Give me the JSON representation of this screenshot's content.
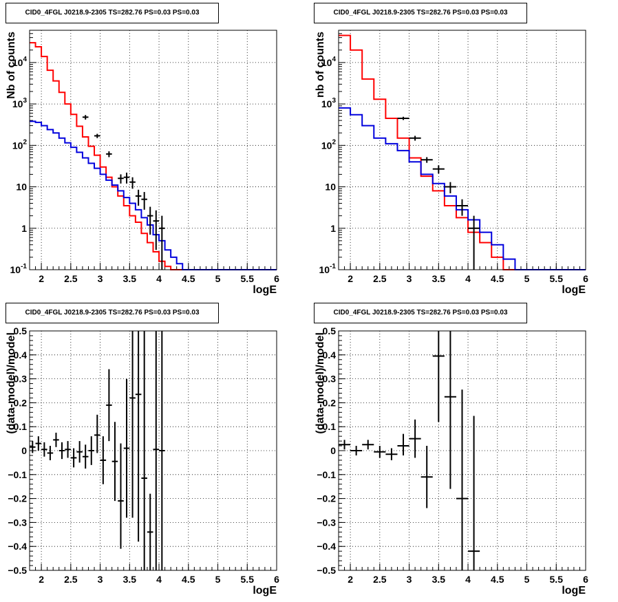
{
  "panels": [
    {
      "title": "CID0_4FGL J0218.9-2305 TS=282.76 PS=0.03 PS=0.03",
      "ylabel": "Nb of counts",
      "xlabel": "logE"
    },
    {
      "title": "CID0_4FGL J0218.9-2305 TS=282.76 PS=0.03 PS=0.03",
      "ylabel": "nb of counts",
      "xlabel": "logE"
    },
    {
      "title": "CID0_4FGL J0218.9-2305 TS=282.76 PS=0.03 PS=0.03",
      "ylabel": "(data-model)/model",
      "xlabel": "logE"
    },
    {
      "title": "CID0_4FGL J0218.9-2305 TS=282.76 PS=0.03 PS=0.03",
      "ylabel": "(data-model)/model",
      "xlabel": "logE"
    }
  ],
  "chart_data": [
    {
      "type": "line",
      "title": "CID0_4FGL J0218.9-2305 TS=282.76 PS=0.03 PS=0.03",
      "xlabel": "logE",
      "ylabel": "Nb of counts",
      "xlim": [
        1.8,
        6
      ],
      "ylim": [
        0.1,
        60000
      ],
      "yscale": "log",
      "grid": true,
      "xticks": [
        "2",
        "2.5",
        "3",
        "3.5",
        "4",
        "4.5",
        "5",
        "5.5",
        "6"
      ],
      "yticks": [
        "10^-1",
        "1",
        "10",
        "10^2",
        "10^3",
        "10^4"
      ],
      "step_x_edges": [
        1.8,
        1.9,
        2.0,
        2.1,
        2.2,
        2.3,
        2.4,
        2.5,
        2.6,
        2.7,
        2.8,
        2.9,
        3.0,
        3.1,
        3.2,
        3.3,
        3.4,
        3.5,
        3.6,
        3.7,
        3.8,
        3.9,
        4.0,
        4.1,
        4.2,
        4.3,
        4.4,
        4.5,
        4.6,
        4.7,
        4.8,
        4.9,
        5.0,
        5.1,
        5.2,
        5.3,
        5.4,
        5.5,
        5.6,
        5.7,
        5.8,
        5.9,
        6.0
      ],
      "series": [
        {
          "color": "#ff0000",
          "values": [
            30000,
            24000,
            14000,
            6500,
            3600,
            1900,
            1000,
            560,
            290,
            160,
            95,
            58,
            30,
            17,
            10,
            6,
            3.5,
            2.0,
            1.4,
            0.75,
            0.45,
            0.27,
            0.16,
            0.12,
            0.1,
            0.1,
            0.1,
            0.1,
            0.1,
            0.1,
            0.1,
            0.1,
            0.1,
            0.1,
            0.1,
            0.1,
            0.1,
            0.1,
            0.1,
            0.1,
            0.1,
            0.1
          ]
        },
        {
          "color": "#0000dd",
          "values": [
            380,
            360,
            300,
            240,
            200,
            150,
            115,
            90,
            68,
            50,
            37,
            28,
            20,
            14.5,
            11,
            8,
            5.5,
            4.0,
            2.8,
            1.8,
            1.2,
            0.7,
            0.5,
            0.3,
            0.2,
            0.14,
            0.1,
            0.1,
            0.1,
            0.1,
            0.1,
            0.1,
            0.1,
            0.1,
            0.1,
            0.1,
            0.1,
            0.1,
            0.1,
            0.1,
            0.1,
            0.1
          ]
        }
      ],
      "data_points": {
        "color": "#000000",
        "x": [
          2.75,
          2.95,
          3.15,
          3.35,
          3.45,
          3.55,
          3.65,
          3.75,
          3.85,
          3.95,
          4.05
        ],
        "y": [
          480,
          170,
          62,
          16,
          17,
          13,
          6,
          5,
          2.0,
          1.5,
          1.0
        ],
        "ylow": [
          420,
          150,
          52,
          12,
          12,
          9,
          3.5,
          2.8,
          0.7,
          0.3,
          0.1
        ],
        "yhigh": [
          540,
          190,
          72,
          20,
          22,
          17,
          8.5,
          7.5,
          3.3,
          2.7,
          2.0
        ],
        "xhalf": 0.05
      }
    },
    {
      "type": "line",
      "title": "CID0_4FGL J0218.9-2305 TS=282.76 PS=0.03 PS=0.03",
      "xlabel": "logE",
      "ylabel": "nb of counts",
      "xlim": [
        1.8,
        6
      ],
      "ylim": [
        0.1,
        60000
      ],
      "yscale": "log",
      "grid": true,
      "xticks": [
        "2",
        "2.5",
        "3",
        "3.5",
        "4",
        "4.5",
        "5",
        "5.5",
        "6"
      ],
      "yticks": [
        "10^-1",
        "1",
        "10",
        "10^2",
        "10^3",
        "10^4"
      ],
      "step_x_edges": [
        1.8,
        2.0,
        2.2,
        2.4,
        2.6,
        2.8,
        3.0,
        3.2,
        3.4,
        3.6,
        3.8,
        4.0,
        4.2,
        4.4,
        4.6,
        4.8,
        5.0,
        5.2,
        5.4,
        5.6,
        5.8,
        6.0
      ],
      "series": [
        {
          "color": "#ff0000",
          "values": [
            45000,
            20000,
            4000,
            1300,
            450,
            150,
            50,
            18,
            8,
            3.5,
            1.8,
            0.8,
            0.45,
            0.2,
            0.1,
            0.1,
            0.1,
            0.1,
            0.1,
            0.1,
            0.1
          ]
        },
        {
          "color": "#0000dd",
          "values": [
            800,
            550,
            300,
            150,
            110,
            75,
            40,
            20,
            12,
            6,
            2.8,
            1.6,
            0.8,
            0.4,
            0.18,
            0.1,
            0.1,
            0.1,
            0.1,
            0.1,
            0.1
          ]
        }
      ],
      "data_points": {
        "color": "#000000",
        "x": [
          2.9,
          3.1,
          3.3,
          3.5,
          3.7,
          3.9,
          4.1
        ],
        "y": [
          450,
          150,
          45,
          27,
          10,
          3.5,
          1.0
        ],
        "ylow": [
          410,
          130,
          38,
          21,
          7,
          2.0,
          0.1
        ],
        "yhigh": [
          490,
          170,
          52,
          33,
          13,
          5.0,
          2.0
        ],
        "xhalf": 0.1
      }
    },
    {
      "type": "scatter",
      "title": "CID0_4FGL J0218.9-2305 TS=282.76 PS=0.03 PS=0.03",
      "xlabel": "logE",
      "ylabel": "(data-model)/model",
      "xlim": [
        1.8,
        6
      ],
      "ylim": [
        -0.5,
        0.5
      ],
      "grid": true,
      "xticks": [
        "2",
        "2.5",
        "3",
        "3.5",
        "4",
        "4.5",
        "5",
        "5.5",
        "6"
      ],
      "yticks": [
        "-0.5",
        "-0.4",
        "-0.3",
        "-0.2",
        "-0.1",
        "0",
        "0.1",
        "0.2",
        "0.3",
        "0.4",
        "0.5"
      ],
      "x": [
        1.85,
        1.95,
        2.05,
        2.15,
        2.25,
        2.35,
        2.45,
        2.55,
        2.65,
        2.75,
        2.85,
        2.95,
        3.05,
        3.15,
        3.25,
        3.35,
        3.45,
        3.55,
        3.65,
        3.75,
        3.85,
        3.95,
        4.05
      ],
      "y": [
        0.015,
        0.03,
        0.005,
        -0.01,
        0.045,
        0.0,
        0.005,
        -0.03,
        -0.005,
        -0.025,
        0.0,
        0.065,
        -0.04,
        0.19,
        -0.045,
        -0.21,
        0.01,
        0.22,
        0.235,
        -0.115,
        -0.34,
        0.005,
        0.0
      ],
      "ylow": [
        -0.01,
        0.0,
        -0.025,
        -0.04,
        0.015,
        -0.035,
        -0.03,
        -0.07,
        -0.05,
        -0.075,
        -0.06,
        -0.01,
        -0.14,
        0.04,
        -0.21,
        -0.41,
        -0.28,
        -0.28,
        -0.38,
        -0.5,
        -0.5,
        -0.5,
        -0.5
      ],
      "yhigh": [
        0.04,
        0.06,
        0.035,
        0.02,
        0.075,
        0.035,
        0.04,
        0.01,
        0.04,
        0.025,
        0.06,
        0.15,
        0.06,
        0.34,
        0.12,
        0.03,
        0.3,
        0.5,
        0.5,
        0.5,
        -0.18,
        0.5,
        0.5
      ],
      "xhalf": 0.05
    },
    {
      "type": "scatter",
      "title": "CID0_4FGL J0218.9-2305 TS=282.76 PS=0.03 PS=0.03",
      "xlabel": "logE",
      "ylabel": "(data-model)/model",
      "xlim": [
        1.8,
        6
      ],
      "ylim": [
        -0.5,
        0.5
      ],
      "grid": true,
      "xticks": [
        "2",
        "2.5",
        "3",
        "3.5",
        "4",
        "4.5",
        "5",
        "5.5",
        "6"
      ],
      "yticks": [
        "-0.5",
        "-0.4",
        "-0.3",
        "-0.2",
        "-0.1",
        "0",
        "0.1",
        "0.2",
        "0.3",
        "0.4",
        "0.5"
      ],
      "x": [
        1.9,
        2.1,
        2.3,
        2.5,
        2.7,
        2.9,
        3.1,
        3.3,
        3.5,
        3.7,
        3.9,
        4.1
      ],
      "y": [
        0.025,
        0.0,
        0.025,
        -0.005,
        -0.015,
        0.02,
        0.05,
        -0.11,
        0.395,
        0.225,
        -0.2,
        -0.42
      ],
      "ylow": [
        0.005,
        -0.02,
        0.005,
        -0.03,
        -0.04,
        -0.02,
        -0.03,
        -0.24,
        0.12,
        -0.16,
        -0.5,
        -0.5
      ],
      "yhigh": [
        0.045,
        0.02,
        0.045,
        0.02,
        0.01,
        0.07,
        0.13,
        0.02,
        0.5,
        0.5,
        0.255,
        0.145
      ],
      "xhalf": 0.1
    }
  ]
}
